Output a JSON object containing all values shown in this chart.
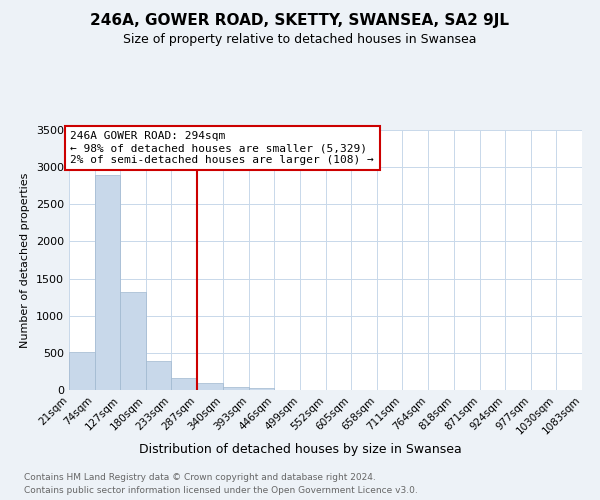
{
  "title": "246A, GOWER ROAD, SKETTY, SWANSEA, SA2 9JL",
  "subtitle": "Size of property relative to detached houses in Swansea",
  "xlabel": "Distribution of detached houses by size in Swansea",
  "ylabel": "Number of detached properties",
  "footer1": "Contains HM Land Registry data © Crown copyright and database right 2024.",
  "footer2": "Contains public sector information licensed under the Open Government Licence v3.0.",
  "annotation_title": "246A GOWER ROAD: 294sqm",
  "annotation_line1": "← 98% of detached houses are smaller (5,329)",
  "annotation_line2": "2% of semi-detached houses are larger (108) →",
  "bins": [
    21,
    74,
    127,
    180,
    233,
    287,
    340,
    393,
    446,
    499,
    552,
    605,
    658,
    711,
    764,
    818,
    871,
    924,
    977,
    1030,
    1083
  ],
  "bin_labels": [
    "21sqm",
    "74sqm",
    "127sqm",
    "180sqm",
    "233sqm",
    "287sqm",
    "340sqm",
    "393sqm",
    "446sqm",
    "499sqm",
    "552sqm",
    "605sqm",
    "658sqm",
    "711sqm",
    "764sqm",
    "818sqm",
    "871sqm",
    "924sqm",
    "977sqm",
    "1030sqm",
    "1083sqm"
  ],
  "counts": [
    510,
    2900,
    1320,
    390,
    155,
    90,
    40,
    25,
    0,
    0,
    0,
    0,
    0,
    0,
    0,
    0,
    0,
    0,
    0,
    0
  ],
  "bar_color": "#c8d8ea",
  "vline_color": "#cc0000",
  "vline_x_bin": 5,
  "annotation_box_color": "#cc0000",
  "ylim": [
    0,
    3500
  ],
  "yticks": [
    0,
    500,
    1000,
    1500,
    2000,
    2500,
    3000,
    3500
  ],
  "grid_color": "#c8d8ea",
  "background_color": "#edf2f7",
  "plot_bg_color": "#ffffff"
}
